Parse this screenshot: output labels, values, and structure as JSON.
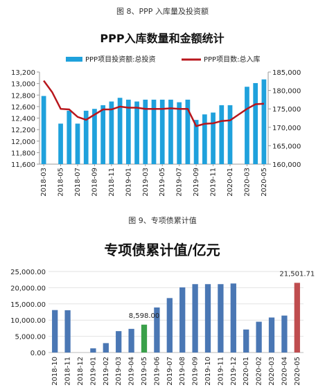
{
  "figure1": {
    "caption": "图 8、PPP 入库量及投资额",
    "chart_data": {
      "type": "bar",
      "title": "PPP入库数量和金额统计",
      "categories": [
        "2018-03",
        "2018-04",
        "2018-05",
        "2018-06",
        "2018-07",
        "2018-08",
        "2018-09",
        "2018-10",
        "2018-11",
        "2018-12",
        "2019-01",
        "2019-02",
        "2019-03",
        "2019-04",
        "2019-05",
        "2019-06",
        "2019-07",
        "2019-08",
        "2019-09",
        "2019-10",
        "2019-11",
        "2019-12",
        "2020-01",
        "2020-02",
        "2020-03",
        "2020-04",
        "2020-05"
      ],
      "x_tick_labels": [
        "2018-03",
        "2018-05",
        "2018-07",
        "2018-09",
        "2018-11",
        "2019-01",
        "2019-03",
        "2019-05",
        "2019-07",
        "2019-09",
        "2019-11",
        "2020-01",
        "2020-03",
        "2020-05"
      ],
      "series": [
        {
          "name": "PPP项目投资额:总投资",
          "kind": "bar",
          "axis": "right",
          "color": "#1fa1dc",
          "values": [
            178500,
            null,
            171000,
            174500,
            171000,
            174500,
            175000,
            176000,
            177000,
            178000,
            177500,
            177000,
            177500,
            177500,
            177500,
            177500,
            176800,
            177500,
            172000,
            173500,
            174000,
            176000,
            176000,
            null,
            181000,
            182000,
            183000
          ]
        },
        {
          "name": "PPP项目数:总入库",
          "kind": "line",
          "axis": "left",
          "color": "#b8161c",
          "values": [
            13050,
            12850,
            12560,
            12550,
            12420,
            12370,
            12460,
            12550,
            12550,
            12600,
            12580,
            12580,
            12560,
            12560,
            12560,
            12570,
            12560,
            12560,
            12260,
            12300,
            12310,
            12350,
            12360,
            12460,
            12560,
            12640,
            12650
          ]
        }
      ],
      "y_left": {
        "min": 11600,
        "max": 13200,
        "ticks": [
          "11,600",
          "11,800",
          "12,000",
          "12,200",
          "12,400",
          "12,600",
          "12,800",
          "13,000",
          "13,200"
        ]
      },
      "y_right": {
        "min": 160000,
        "max": 185000,
        "ticks": [
          "160,000",
          "165,000",
          "170,000",
          "175,000",
          "180,000",
          "185,000"
        ]
      },
      "legend_position": "top"
    }
  },
  "figure2": {
    "caption": "图 9、专项债累计值",
    "chart_data": {
      "type": "bar",
      "title": "专项债累计值/亿元",
      "categories": [
        "2018-10",
        "2018-11",
        "2018-12",
        "2019-01",
        "2019-02",
        "2019-03",
        "2019-04",
        "2019-05",
        "2019-06",
        "2019-07",
        "2019-08",
        "2019-09",
        "2019-10",
        "2019-11",
        "2019-12",
        "2020-01",
        "2020-02",
        "2020-03",
        "2020-04",
        "2020-05"
      ],
      "values": [
        13100,
        13050,
        0,
        1300,
        2900,
        6600,
        7300,
        8598,
        13900,
        16800,
        20100,
        21100,
        21100,
        21100,
        21300,
        7100,
        9500,
        10800,
        11400,
        21501.71
      ],
      "colors": [
        "#4a77b4",
        "#4a77b4",
        "#4a77b4",
        "#4a77b4",
        "#4a77b4",
        "#4a77b4",
        "#4a77b4",
        "#3aa04a",
        "#4a77b4",
        "#4a77b4",
        "#4a77b4",
        "#4a77b4",
        "#4a77b4",
        "#4a77b4",
        "#4a77b4",
        "#4a77b4",
        "#4a77b4",
        "#4a77b4",
        "#4a77b4",
        "#bf4d4f"
      ],
      "data_labels": [
        {
          "index": 7,
          "text": "8,598.00"
        },
        {
          "index": 19,
          "text": "21,501.71"
        }
      ],
      "ylim": [
        0,
        25000
      ],
      "y_ticks": [
        "0.00",
        "5,000.00",
        "10,000.00",
        "15,000.00",
        "20,000.00",
        "25,000.00"
      ]
    }
  }
}
